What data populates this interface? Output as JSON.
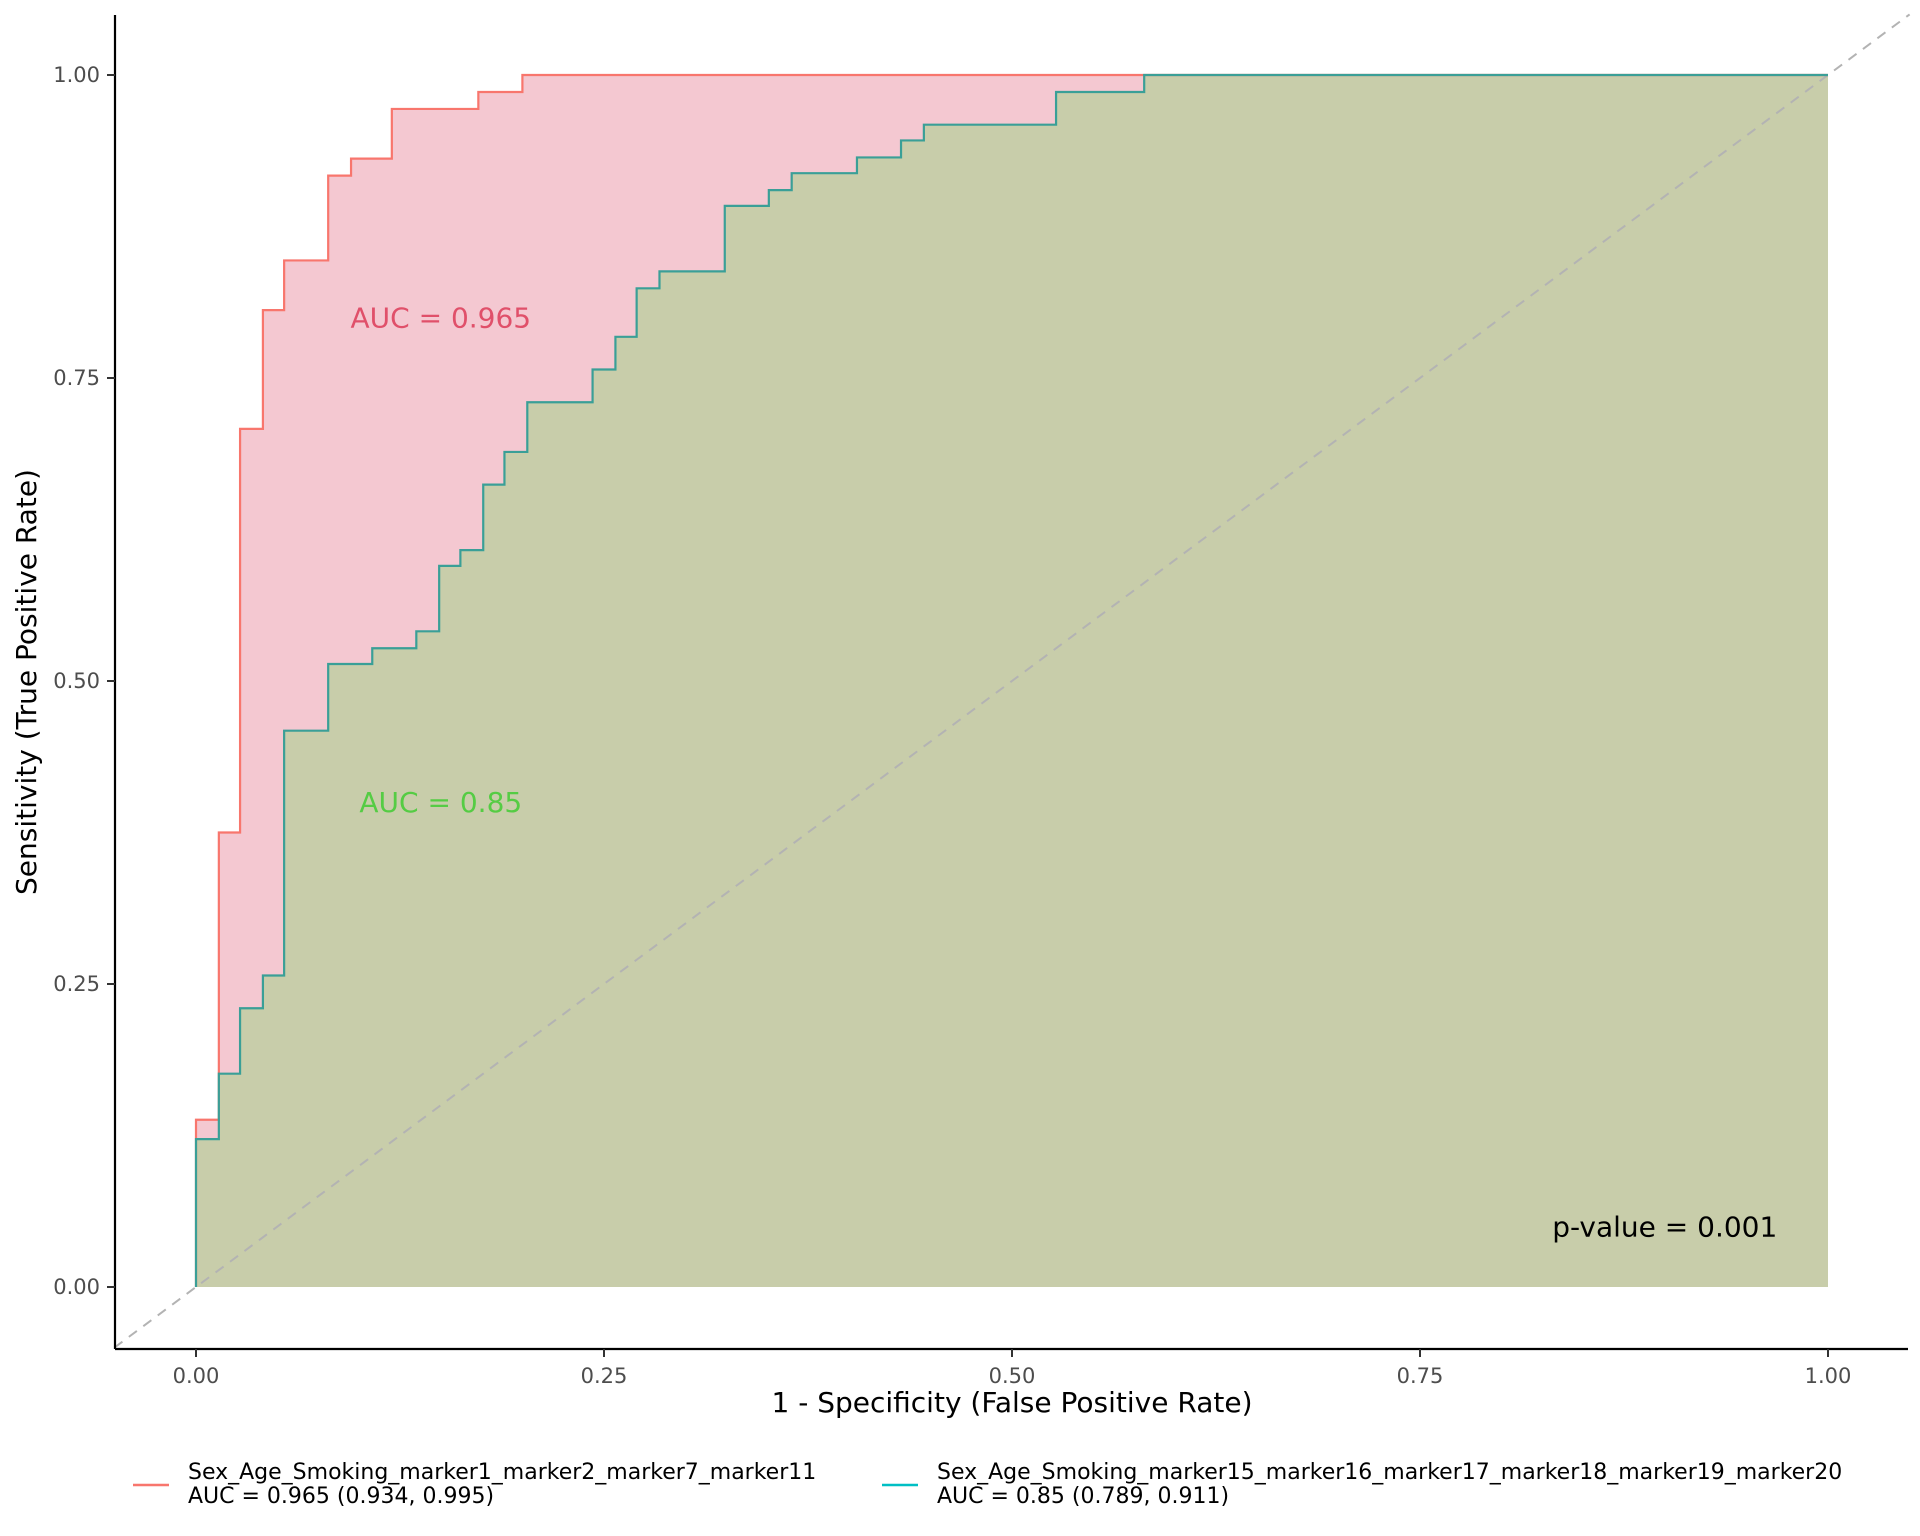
{
  "chart_data": {
    "type": "line",
    "title": "",
    "xlabel": "1 - Specificity (False Positive Rate)",
    "ylabel": "Sensitivity (True Positive Rate)",
    "xlim": [
      -0.05,
      1.05
    ],
    "ylim": [
      -0.05,
      1.05
    ],
    "xticks": [
      0.0,
      0.25,
      0.5,
      0.75,
      1.0
    ],
    "xtick_labels": [
      "0.00",
      "0.25",
      "0.50",
      "0.75",
      "1.00"
    ],
    "yticks": [
      0.0,
      0.25,
      0.5,
      0.75,
      1.0
    ],
    "ytick_labels": [
      "0.00",
      "0.25",
      "0.50",
      "0.75",
      "1.00"
    ],
    "grid": false,
    "legend_position": "bottom",
    "reference_line": {
      "from": [
        0,
        0
      ],
      "to": [
        1,
        1
      ],
      "style": "dashed",
      "color": "#b3b3b3"
    },
    "series": [
      {
        "name": "Sex_Age_Smoking_marker1_marker2_marker7_marker11",
        "legend_subtitle": "AUC = 0.965 (0.934, 0.995)",
        "auc_label": "AUC = 0.965",
        "auc_label_pos": [
          0.15,
          0.8
        ],
        "color": "#f8766d",
        "fill": "#f4c8d1",
        "label_color": "#e0506a",
        "x": [
          0,
          0,
          0.014,
          0.014,
          0.027,
          0.027,
          0.041,
          0.041,
          0.054,
          0.054,
          0.081,
          0.081,
          0.095,
          0.095,
          0.12,
          0.12,
          0.173,
          0.173,
          0.2,
          0.2,
          1.0
        ],
        "y": [
          0,
          0.138,
          0.138,
          0.375,
          0.375,
          0.708,
          0.708,
          0.806,
          0.806,
          0.847,
          0.847,
          0.917,
          0.917,
          0.931,
          0.931,
          0.972,
          0.972,
          0.986,
          0.986,
          1.0,
          1.0
        ]
      },
      {
        "name": "Sex_Age_Smoking_marker15_marker16_marker17_marker18_marker19_marker20",
        "legend_subtitle": "AUC = 0.85 (0.789, 0.911)",
        "auc_label": "AUC = 0.85",
        "auc_label_pos": [
          0.15,
          0.4
        ],
        "color": "#00bfc4",
        "fill": "#c8cdaa",
        "label_color": "#55cc44",
        "x": [
          0,
          0,
          0.014,
          0.014,
          0.027,
          0.027,
          0.041,
          0.041,
          0.054,
          0.054,
          0.081,
          0.081,
          0.108,
          0.108,
          0.135,
          0.135,
          0.149,
          0.149,
          0.162,
          0.162,
          0.176,
          0.176,
          0.189,
          0.189,
          0.203,
          0.203,
          0.243,
          0.243,
          0.257,
          0.257,
          0.27,
          0.27,
          0.284,
          0.284,
          0.324,
          0.324,
          0.351,
          0.351,
          0.365,
          0.365,
          0.405,
          0.405,
          0.432,
          0.432,
          0.446,
          0.446,
          0.527,
          0.527,
          0.581,
          0.581,
          1.0
        ],
        "y": [
          0,
          0.122,
          0.122,
          0.176,
          0.176,
          0.23,
          0.23,
          0.257,
          0.257,
          0.459,
          0.459,
          0.514,
          0.514,
          0.527,
          0.527,
          0.541,
          0.541,
          0.595,
          0.595,
          0.608,
          0.608,
          0.662,
          0.662,
          0.689,
          0.689,
          0.73,
          0.73,
          0.757,
          0.757,
          0.784,
          0.784,
          0.824,
          0.824,
          0.838,
          0.838,
          0.892,
          0.892,
          0.905,
          0.905,
          0.919,
          0.919,
          0.932,
          0.932,
          0.946,
          0.946,
          0.959,
          0.959,
          0.986,
          0.986,
          1.0,
          1.0
        ]
      }
    ],
    "annotations": [
      {
        "text": "p-value = 0.001",
        "x": 0.9,
        "y": 0.05,
        "color": "#000000"
      }
    ]
  }
}
